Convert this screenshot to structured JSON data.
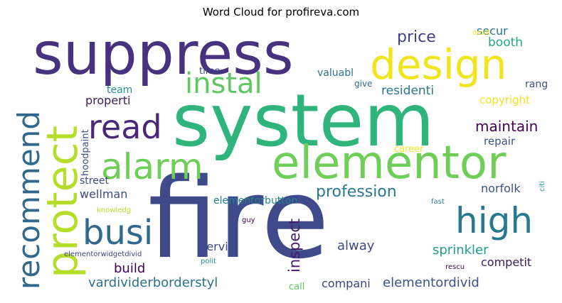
{
  "title": "Word Cloud for profireva.com",
  "colors": {
    "dark_purple": "#46186b",
    "indigo": "#482878",
    "blue_purple": "#3b528b",
    "teal_blue": "#31688e",
    "teal": "#26828e",
    "sea_green": "#1f9e89",
    "green": "#35b779",
    "lime": "#6ece58",
    "yellow_green": "#b5de2b",
    "yellow": "#fde725"
  },
  "words": [
    "suppress",
    "system",
    "fire",
    "design",
    "protect",
    "elementor",
    "alarm",
    "recommend",
    "read",
    "instal",
    "busi",
    "high",
    "profession",
    "maintain",
    "price",
    "secur",
    "booth",
    "dealt",
    "residenti",
    "copyright",
    "team",
    "properti",
    "time",
    "valuabl",
    "give",
    "rang",
    "hoodpaint",
    "street",
    "career",
    "repair",
    "wellman",
    "elementorbutton",
    "norfolk",
    "citi",
    "knowledg",
    "fast",
    "guy",
    "servic",
    "inspect",
    "alway",
    "sprinkler",
    "build",
    "competit",
    "elementorwidgetdivid",
    "polit",
    "rescu",
    "vardividerborderstyl",
    "call",
    "compani",
    "elementordivid"
  ]
}
